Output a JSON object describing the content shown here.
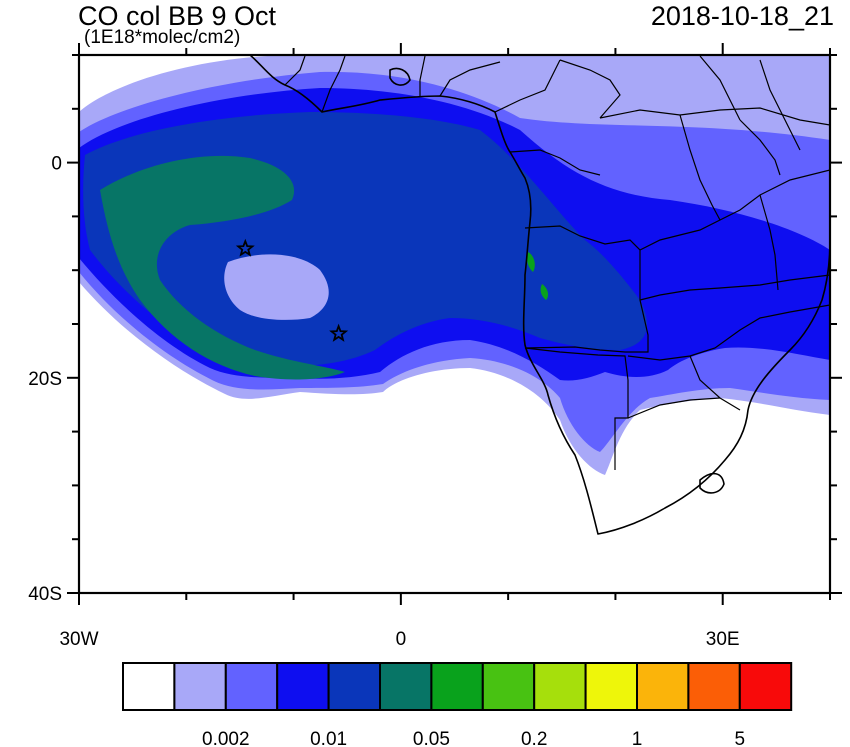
{
  "header": {
    "title": "CO col BB 9 Oct",
    "units": "(1E18*molec/cm2)",
    "timestamp": "2018-10-18_21"
  },
  "map": {
    "region": "South Atlantic and southern Africa",
    "lon_range": [
      -30,
      40
    ],
    "lat_range": [
      -40,
      10
    ],
    "x_ticks": [
      {
        "value": -30,
        "label": "30W"
      },
      {
        "value": 0,
        "label": "0"
      },
      {
        "value": 30,
        "label": "30E"
      }
    ],
    "y_ticks": [
      {
        "value": 0,
        "label": "0"
      },
      {
        "value": -20,
        "label": "20S"
      },
      {
        "value": -40,
        "label": "40S"
      }
    ],
    "markers": [
      {
        "type": "star",
        "lon": -14.5,
        "lat": -8.0
      },
      {
        "type": "star",
        "lon": -5.8,
        "lat": -15.9
      }
    ]
  },
  "colorbar": {
    "colors": [
      "#ffffff",
      "#a8a8f8",
      "#6262ff",
      "#0e0ef0",
      "#0a36ba",
      "#077566",
      "#09a21c",
      "#48c212",
      "#a6df0c",
      "#eef60a",
      "#fbb40a",
      "#fb5e06",
      "#f80a0a"
    ],
    "labels": [
      {
        "boundary": 2,
        "text": "0.002"
      },
      {
        "boundary": 4,
        "text": "0.01"
      },
      {
        "boundary": 6,
        "text": "0.05"
      },
      {
        "boundary": 8,
        "text": "0.2"
      },
      {
        "boundary": 10,
        "text": "1"
      },
      {
        "boundary": 12,
        "text": "5"
      }
    ]
  }
}
